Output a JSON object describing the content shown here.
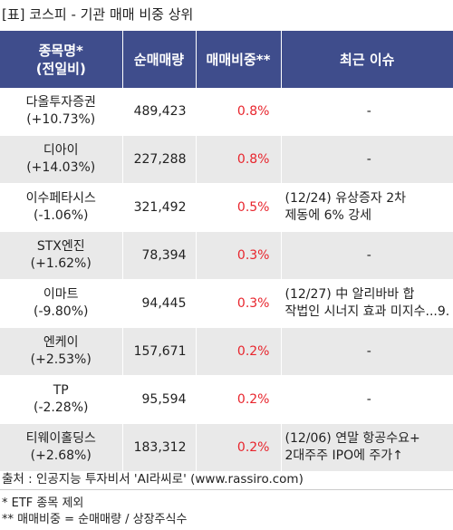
{
  "title": "[표] 코스피 - 기관 매매 비중 상위",
  "headers": {
    "name_line1": "종목명*",
    "name_line2": "(전일비)",
    "volume": "순매매량",
    "ratio": "매매비중**",
    "issue": "최근 이슈"
  },
  "rows": [
    {
      "name": "다올투자증권",
      "change": "(+10.73%)",
      "volume": "489,423",
      "ratio": "0.8%",
      "issue_line1": "-",
      "issue_line2": ""
    },
    {
      "name": "디아이",
      "change": "(+14.03%)",
      "volume": "227,288",
      "ratio": "0.8%",
      "issue_line1": "-",
      "issue_line2": ""
    },
    {
      "name": "이수페타시스",
      "change": "(-1.06%)",
      "volume": "321,492",
      "ratio": "0.5%",
      "issue_line1": "(12/24) 유상증자 2차",
      "issue_line2": "제동에 6% 강세"
    },
    {
      "name": "STX엔진",
      "change": "(+1.62%)",
      "volume": "78,394",
      "ratio": "0.3%",
      "issue_line1": "-",
      "issue_line2": ""
    },
    {
      "name": "이마트",
      "change": "(-9.80%)",
      "volume": "94,445",
      "ratio": "0.3%",
      "issue_line1": "(12/27) 中 알리바바 합",
      "issue_line2": "작법인 시너지 효과 미지수...9."
    },
    {
      "name": "엔케이",
      "change": "(+2.53%)",
      "volume": "157,671",
      "ratio": "0.2%",
      "issue_line1": "-",
      "issue_line2": ""
    },
    {
      "name": "TP",
      "change": "(-2.28%)",
      "volume": "95,594",
      "ratio": "0.2%",
      "issue_line1": "-",
      "issue_line2": ""
    },
    {
      "name": "티웨이홀딩스",
      "change": "(+2.68%)",
      "volume": "183,312",
      "ratio": "0.2%",
      "issue_line1": "(12/06) 연말 항공수요+",
      "issue_line2": "2대주주 IPO에 주가↑"
    }
  ],
  "source": "출처 : 인공지능 투자비서 'AI라씨로' (www.rassiro.com)",
  "notes": [
    "* ETF 종목 제외",
    "** 매매비중 = 순매매량 / 상장주식수"
  ],
  "colors": {
    "header_bg": "#3f4d8c",
    "ratio_text": "#e8252d",
    "stripe": "#e9e9e9"
  }
}
